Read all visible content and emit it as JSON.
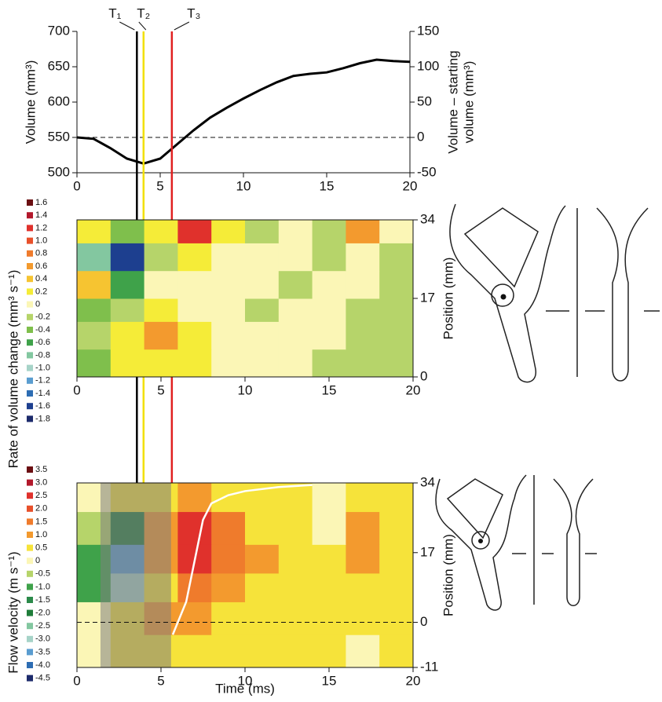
{
  "chart_data": [
    {
      "type": "line",
      "ylabel": "Volume (mm³)",
      "y2label": [
        "Volume – starting",
        "volume (mm³)"
      ],
      "xlim": [
        0,
        20
      ],
      "xticks": [
        0,
        5,
        10,
        15,
        20
      ],
      "ylim": [
        500,
        700
      ],
      "yticks": [
        500,
        550,
        600,
        650,
        700
      ],
      "y2lim": [
        -50,
        150
      ],
      "y2ticks": [
        -50,
        0,
        50,
        100,
        150
      ],
      "color": "#000000",
      "hline": 550,
      "x": [
        0,
        1,
        2,
        3,
        4,
        5,
        6,
        7,
        8,
        9,
        10,
        11,
        12,
        13,
        14,
        15,
        16,
        17,
        18,
        19,
        20
      ],
      "values": [
        550,
        548,
        535,
        520,
        513,
        520,
        540,
        560,
        578,
        592,
        605,
        617,
        628,
        637,
        640,
        642,
        648,
        655,
        660,
        658,
        657
      ],
      "markers": [
        {
          "label": "T₁",
          "x": 3.6,
          "color": "#000000"
        },
        {
          "label": "T₂",
          "x": 4.0,
          "color": "#f2e000"
        },
        {
          "label": "T₃",
          "x": 5.7,
          "color": "#e02020"
        }
      ]
    },
    {
      "type": "heatmap",
      "ylabel": "Rate of volume change (mm³ s⁻¹)",
      "y2label": "Position (mm)",
      "xlim": [
        0,
        20
      ],
      "xticks": [
        0,
        5,
        10,
        15,
        20
      ],
      "y2lim": [
        0,
        34
      ],
      "y2ticks": [
        0,
        17,
        34
      ],
      "xbins": [
        0,
        2,
        4,
        6,
        8,
        10,
        12,
        14,
        16,
        18,
        20
      ],
      "ybins": [
        0,
        6,
        12,
        17,
        23,
        29,
        34
      ],
      "values": [
        [
          -0.4,
          0.2,
          0.2,
          0.2,
          0,
          0,
          0,
          -0.2,
          -0.2,
          -0.2
        ],
        [
          -0.2,
          0.2,
          0.6,
          0.2,
          0,
          0,
          0,
          0,
          -0.2,
          -0.2
        ],
        [
          -0.4,
          -0.2,
          0.2,
          0,
          0,
          -0.2,
          0,
          0,
          -0.2,
          -0.2
        ],
        [
          0.4,
          -0.6,
          0,
          0,
          0,
          0,
          -0.2,
          0,
          0,
          -0.2
        ],
        [
          -0.8,
          -1.6,
          -0.2,
          0.2,
          0,
          0,
          0,
          -0.2,
          0,
          -0.2
        ],
        [
          0.2,
          -0.4,
          0.2,
          1.2,
          0.2,
          -0.2,
          0,
          -0.2,
          0.6,
          0
        ]
      ],
      "colorbar": {
        "labels": [
          "1.6",
          "1.4",
          "1.2",
          "1.0",
          "0.8",
          "0.6",
          "0.4",
          "0.2",
          "0",
          "-0.2",
          "-0.4",
          "-0.6",
          "-0.8",
          "-1.0",
          "-1.2",
          "-1.4",
          "-1.6",
          "-1.8"
        ],
        "colors": [
          "#6b0f12",
          "#b2182b",
          "#e0312c",
          "#e8502a",
          "#ef7b2c",
          "#f39a2e",
          "#f6c431",
          "#f5ec38",
          "#fbf6b6",
          "#b6d46a",
          "#7fbf4c",
          "#3fa24a",
          "#83c7a0",
          "#a6d3c8",
          "#5a9dd0",
          "#2d6db3",
          "#1d3f8f",
          "#1c2a6b"
        ]
      }
    },
    {
      "type": "heatmap",
      "ylabel": "Flow velocity (m s⁻¹)",
      "y2label": "Position (mm)",
      "xlabel": "Time (ms)",
      "xlim": [
        0,
        20
      ],
      "xticks": [
        0,
        5,
        10,
        15,
        20
      ],
      "y2lim": [
        -11,
        34
      ],
      "y2ticks": [
        -11,
        0,
        17,
        34
      ],
      "xbins": [
        0,
        2,
        4,
        6,
        8,
        10,
        12,
        14,
        16,
        18,
        20
      ],
      "ybins": [
        -11,
        -3,
        5,
        12,
        19,
        27,
        34
      ],
      "values": [
        [
          0,
          0.5,
          0.5,
          0.5,
          0.5,
          0.5,
          0.5,
          0.5,
          0,
          0.5
        ],
        [
          0,
          0.5,
          1.0,
          1.0,
          0.5,
          0.5,
          0.5,
          0.5,
          0.5,
          0.5
        ],
        [
          -1.0,
          -3.0,
          0.5,
          1.5,
          1.0,
          0.5,
          0.5,
          0.5,
          0.5,
          0.5
        ],
        [
          -1.0,
          -3.5,
          1.0,
          2.5,
          1.5,
          1.0,
          0.5,
          0.5,
          1.0,
          0.5
        ],
        [
          -0.5,
          -2.0,
          1.0,
          2.5,
          1.5,
          0.5,
          0.5,
          0,
          1.0,
          0.5
        ],
        [
          0,
          0.5,
          0.5,
          1.0,
          0.5,
          0.5,
          0.5,
          0,
          0.5,
          0.5
        ]
      ],
      "hline": 0,
      "shaded_span": [
        1.4,
        5.6
      ],
      "curve": {
        "color": "#ffffff",
        "x": [
          5.7,
          6.5,
          7,
          7.5,
          8,
          9,
          10,
          12,
          14
        ],
        "y": [
          -3,
          5,
          15,
          25,
          29,
          31,
          32,
          33,
          33.5
        ]
      },
      "colorbar": {
        "labels": [
          "3.5",
          "3.0",
          "2.5",
          "2.0",
          "1.5",
          "1.0",
          "0.5",
          "0",
          "-0.5",
          "-1.0",
          "-1.5",
          "-2.0",
          "-2.5",
          "-3.0",
          "-3.5",
          "-4.0",
          "-4.5"
        ],
        "colors": [
          "#6b0f12",
          "#b2182b",
          "#e0312c",
          "#e8502a",
          "#ef7b2c",
          "#f39a2e",
          "#f6e33a",
          "#fbf6b6",
          "#b6d46a",
          "#3fa24a",
          "#2b8a4a",
          "#1f7d3a",
          "#83c7a0",
          "#a6d3c8",
          "#5a9dd0",
          "#2d6db3",
          "#1c2a6b"
        ]
      }
    }
  ]
}
